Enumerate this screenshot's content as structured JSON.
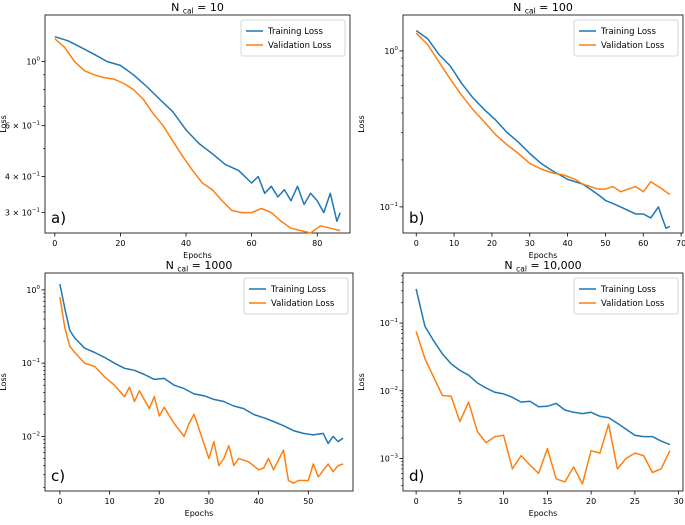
{
  "style": {
    "training_color": "#1f77b4",
    "validation_color": "#ff7f0e",
    "axis_color": "#000000"
  },
  "chart_data": [
    {
      "panel_label": "a)",
      "type": "line",
      "title": {
        "prefix": "N",
        "subscript": "cal",
        "suffix": " = 10"
      },
      "xlabel": "Epochs",
      "ylabel": "Loss",
      "yscale": "log",
      "xlim": [
        -3,
        90
      ],
      "ylim": [
        0.255,
        1.45
      ],
      "xticks": [
        0,
        20,
        40,
        60,
        80
      ],
      "yticks": [
        {
          "value": 1.0,
          "base": "10",
          "exp": "0"
        },
        {
          "value": 0.6,
          "base": "6 × 10",
          "exp": "−1"
        },
        {
          "value": 0.4,
          "base": "4 × 10",
          "exp": "−1"
        },
        {
          "value": 0.3,
          "base": "3 × 10",
          "exp": "−1"
        }
      ],
      "minor_yticks": [
        0.5,
        0.7,
        0.8,
        0.9
      ],
      "legend": {
        "position": "top-right"
      },
      "series": [
        {
          "name": "Training Loss",
          "color": "#1f77b4",
          "x": [
            0,
            4,
            8,
            12,
            16,
            20,
            24,
            28,
            32,
            36,
            40,
            44,
            48,
            52,
            56,
            60,
            62,
            64,
            66,
            68,
            70,
            72,
            74,
            76,
            78,
            80,
            82,
            84,
            86,
            87
          ],
          "y": [
            1.22,
            1.18,
            1.12,
            1.06,
            1.0,
            0.97,
            0.9,
            0.82,
            0.74,
            0.67,
            0.58,
            0.52,
            0.48,
            0.44,
            0.42,
            0.38,
            0.4,
            0.35,
            0.37,
            0.34,
            0.36,
            0.33,
            0.37,
            0.32,
            0.35,
            0.33,
            0.3,
            0.35,
            0.28,
            0.3
          ]
        },
        {
          "name": "Validation Loss",
          "color": "#ff7f0e",
          "x": [
            0,
            3,
            6,
            9,
            12,
            15,
            18,
            21,
            24,
            27,
            30,
            33,
            36,
            39,
            42,
            45,
            48,
            51,
            54,
            57,
            60,
            63,
            66,
            69,
            72,
            75,
            78,
            81,
            84,
            87
          ],
          "y": [
            1.2,
            1.12,
            1.0,
            0.93,
            0.9,
            0.88,
            0.87,
            0.84,
            0.8,
            0.74,
            0.66,
            0.6,
            0.53,
            0.47,
            0.42,
            0.38,
            0.36,
            0.33,
            0.305,
            0.3,
            0.3,
            0.31,
            0.3,
            0.28,
            0.265,
            0.26,
            0.255,
            0.27,
            0.265,
            0.26
          ]
        }
      ]
    },
    {
      "panel_label": "b)",
      "type": "line",
      "title": {
        "prefix": "N",
        "subscript": "cal",
        "suffix": " = 100"
      },
      "xlabel": "Epochs",
      "ylabel": "Loss",
      "yscale": "log",
      "xlim": [
        -3.5,
        70.5
      ],
      "ylim": [
        0.068,
        1.7
      ],
      "xticks": [
        0,
        10,
        20,
        30,
        40,
        50,
        60,
        70
      ],
      "yticks": [
        {
          "value": 1.0,
          "base": "10",
          "exp": "0"
        },
        {
          "value": 0.1,
          "base": "10",
          "exp": "−1"
        }
      ],
      "minor_yticks": [
        0.2,
        0.3,
        0.4,
        0.5,
        0.6,
        0.7,
        0.8,
        0.9
      ],
      "legend": {
        "position": "top-right"
      },
      "series": [
        {
          "name": "Training Loss",
          "color": "#1f77b4",
          "x": [
            0,
            3,
            6,
            9,
            12,
            15,
            18,
            21,
            24,
            27,
            30,
            33,
            36,
            38,
            40,
            42,
            44,
            46,
            48,
            50,
            52,
            54,
            56,
            58,
            60,
            62,
            64,
            65,
            66,
            67
          ],
          "y": [
            1.35,
            1.2,
            0.95,
            0.8,
            0.62,
            0.5,
            0.42,
            0.36,
            0.3,
            0.26,
            0.22,
            0.19,
            0.17,
            0.16,
            0.15,
            0.145,
            0.14,
            0.13,
            0.12,
            0.11,
            0.105,
            0.1,
            0.095,
            0.09,
            0.09,
            0.085,
            0.1,
            0.085,
            0.073,
            0.075
          ]
        },
        {
          "name": "Validation Loss",
          "color": "#ff7f0e",
          "x": [
            0,
            3,
            6,
            9,
            12,
            15,
            18,
            21,
            24,
            27,
            30,
            33,
            36,
            39,
            42,
            44,
            46,
            48,
            50,
            52,
            54,
            56,
            58,
            60,
            62,
            64,
            65,
            66,
            67
          ],
          "y": [
            1.3,
            1.1,
            0.85,
            0.66,
            0.52,
            0.42,
            0.35,
            0.29,
            0.25,
            0.22,
            0.19,
            0.175,
            0.165,
            0.16,
            0.15,
            0.14,
            0.135,
            0.13,
            0.13,
            0.135,
            0.125,
            0.13,
            0.135,
            0.125,
            0.145,
            0.135,
            0.13,
            0.125,
            0.12
          ]
        }
      ]
    },
    {
      "panel_label": "c)",
      "type": "line",
      "title": {
        "prefix": "N",
        "subscript": "cal",
        "suffix": " = 1000"
      },
      "xlabel": "Epochs",
      "ylabel": "Loss",
      "yscale": "log",
      "xlim": [
        -3,
        59
      ],
      "ylim": [
        0.0018,
        1.7
      ],
      "xticks": [
        0,
        10,
        20,
        30,
        40,
        50
      ],
      "yticks": [
        {
          "value": 1.0,
          "base": "10",
          "exp": "0"
        },
        {
          "value": 0.1,
          "base": "10",
          "exp": "−1"
        },
        {
          "value": 0.01,
          "base": "10",
          "exp": "−2"
        }
      ],
      "minor_yticks": [],
      "legend": {
        "position": "top-right"
      },
      "series": [
        {
          "name": "Training Loss",
          "color": "#1f77b4",
          "x": [
            0,
            1,
            2,
            3,
            5,
            7,
            9,
            11,
            13,
            15,
            17,
            19,
            21,
            23,
            25,
            27,
            29,
            31,
            33,
            35,
            37,
            39,
            41,
            43,
            45,
            47,
            49,
            51,
            53,
            54,
            55,
            56,
            57
          ],
          "y": [
            1.2,
            0.55,
            0.28,
            0.22,
            0.16,
            0.14,
            0.12,
            0.1,
            0.085,
            0.08,
            0.07,
            0.06,
            0.062,
            0.05,
            0.045,
            0.038,
            0.036,
            0.032,
            0.03,
            0.026,
            0.024,
            0.02,
            0.018,
            0.016,
            0.014,
            0.012,
            0.011,
            0.0105,
            0.011,
            0.008,
            0.01,
            0.0085,
            0.0095
          ]
        },
        {
          "name": "Validation Loss",
          "color": "#ff7f0e",
          "x": [
            0,
            1,
            2,
            3,
            5,
            7,
            9,
            11,
            13,
            14,
            15,
            16,
            18,
            19,
            20,
            21,
            23,
            25,
            26,
            27,
            29,
            30,
            31,
            32,
            33,
            34,
            35,
            36,
            38,
            40,
            41,
            42,
            43,
            45,
            46,
            47,
            48,
            50,
            51,
            52,
            54,
            55,
            56,
            57
          ],
          "y": [
            0.8,
            0.3,
            0.17,
            0.14,
            0.1,
            0.09,
            0.065,
            0.05,
            0.035,
            0.047,
            0.03,
            0.042,
            0.024,
            0.035,
            0.019,
            0.025,
            0.015,
            0.01,
            0.015,
            0.02,
            0.008,
            0.005,
            0.0085,
            0.004,
            0.005,
            0.0075,
            0.004,
            0.005,
            0.0045,
            0.0035,
            0.0037,
            0.005,
            0.0035,
            0.0065,
            0.0025,
            0.0023,
            0.0025,
            0.0025,
            0.0042,
            0.0028,
            0.0042,
            0.0033,
            0.004,
            0.0042
          ]
        }
      ]
    },
    {
      "panel_label": "d)",
      "type": "line",
      "title": {
        "prefix": "N",
        "subscript": "cal",
        "suffix": " = 10,000"
      },
      "xlabel": "Epochs",
      "ylabel": "Loss",
      "yscale": "log",
      "xlim": [
        -1.5,
        30.5
      ],
      "ylim": [
        0.00033,
        0.55
      ],
      "xticks": [
        0,
        5,
        10,
        15,
        20,
        25,
        30
      ],
      "yticks": [
        {
          "value": 0.1,
          "base": "10",
          "exp": "−1"
        },
        {
          "value": 0.01,
          "base": "10",
          "exp": "−2"
        },
        {
          "value": 0.001,
          "base": "10",
          "exp": "−3"
        }
      ],
      "minor_yticks": [],
      "legend": {
        "position": "top-right"
      },
      "series": [
        {
          "name": "Training Loss",
          "color": "#1f77b4",
          "x": [
            0,
            1,
            2,
            3,
            4,
            5,
            6,
            7,
            8,
            9,
            10,
            11,
            12,
            13,
            14,
            15,
            16,
            17,
            18,
            19,
            20,
            21,
            22,
            23,
            24,
            25,
            26,
            27,
            28,
            29
          ],
          "y": [
            0.32,
            0.09,
            0.055,
            0.035,
            0.025,
            0.02,
            0.017,
            0.013,
            0.011,
            0.0095,
            0.009,
            0.008,
            0.0068,
            0.007,
            0.0058,
            0.0059,
            0.0065,
            0.0052,
            0.0048,
            0.0046,
            0.0048,
            0.0042,
            0.004,
            0.0033,
            0.0027,
            0.0022,
            0.0021,
            0.0021,
            0.0018,
            0.0016
          ]
        },
        {
          "name": "Validation Loss",
          "color": "#ff7f0e",
          "x": [
            0,
            1,
            2,
            3,
            4,
            5,
            6,
            7,
            8,
            9,
            10,
            11,
            12,
            13,
            14,
            15,
            16,
            17,
            18,
            19,
            20,
            21,
            22,
            23,
            24,
            25,
            26,
            27,
            28,
            29
          ],
          "y": [
            0.075,
            0.03,
            0.016,
            0.0085,
            0.0083,
            0.0035,
            0.0068,
            0.0025,
            0.0017,
            0.0021,
            0.0022,
            0.0007,
            0.0011,
            0.0008,
            0.0006,
            0.0014,
            0.0005,
            0.00045,
            0.00075,
            0.00042,
            0.0013,
            0.0012,
            0.0032,
            0.0007,
            0.001,
            0.0012,
            0.0011,
            0.00062,
            0.0007,
            0.0013
          ]
        }
      ]
    }
  ]
}
